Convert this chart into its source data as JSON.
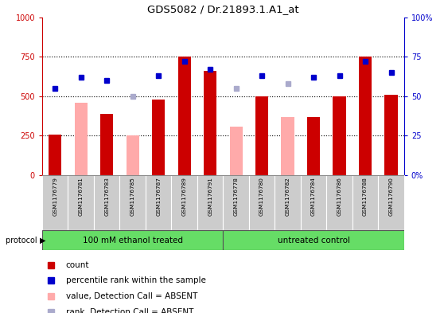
{
  "title": "GDS5082 / Dr.21893.1.A1_at",
  "samples": [
    "GSM1176779",
    "GSM1176781",
    "GSM1176783",
    "GSM1176785",
    "GSM1176787",
    "GSM1176789",
    "GSM1176791",
    "GSM1176778",
    "GSM1176780",
    "GSM1176782",
    "GSM1176784",
    "GSM1176786",
    "GSM1176788",
    "GSM1176790"
  ],
  "count_values": [
    255,
    0,
    390,
    0,
    480,
    750,
    660,
    0,
    500,
    0,
    370,
    500,
    750,
    510
  ],
  "count_absent": [
    false,
    true,
    false,
    true,
    false,
    false,
    false,
    true,
    false,
    true,
    false,
    false,
    false,
    false
  ],
  "absent_value": [
    0,
    460,
    0,
    250,
    0,
    0,
    0,
    310,
    0,
    370,
    0,
    0,
    0,
    0
  ],
  "rank_values": [
    55,
    62,
    60,
    50,
    63,
    72,
    67,
    55,
    63,
    58,
    62,
    63,
    72,
    65
  ],
  "rank_absent": [
    false,
    false,
    false,
    true,
    false,
    false,
    false,
    true,
    false,
    true,
    false,
    false,
    false,
    false
  ],
  "group1_count": 7,
  "group1_label": "100 mM ethanol treated",
  "group2_label": "untreated control",
  "group_color": "#66dd66",
  "left_axis_color": "#cc0000",
  "right_axis_color": "#0000cc",
  "bar_color_present": "#cc0000",
  "bar_color_absent": "#ffaaaa",
  "dot_color_present": "#0000cc",
  "dot_color_absent": "#aaaacc",
  "ylim_left": [
    0,
    1000
  ],
  "ylim_right": [
    0,
    100
  ],
  "yticks_left": [
    0,
    250,
    500,
    750,
    1000
  ],
  "ytick_labels_left": [
    "0",
    "250",
    "500",
    "750",
    "1000"
  ],
  "yticks_right": [
    0,
    25,
    50,
    75,
    100
  ],
  "ytick_labels_right": [
    "0%",
    "25",
    "50",
    "75",
    "100%"
  ],
  "legend_labels": [
    "count",
    "percentile rank within the sample",
    "value, Detection Call = ABSENT",
    "rank, Detection Call = ABSENT"
  ],
  "legend_colors": [
    "#cc0000",
    "#0000cc",
    "#ffaaaa",
    "#aaaacc"
  ]
}
